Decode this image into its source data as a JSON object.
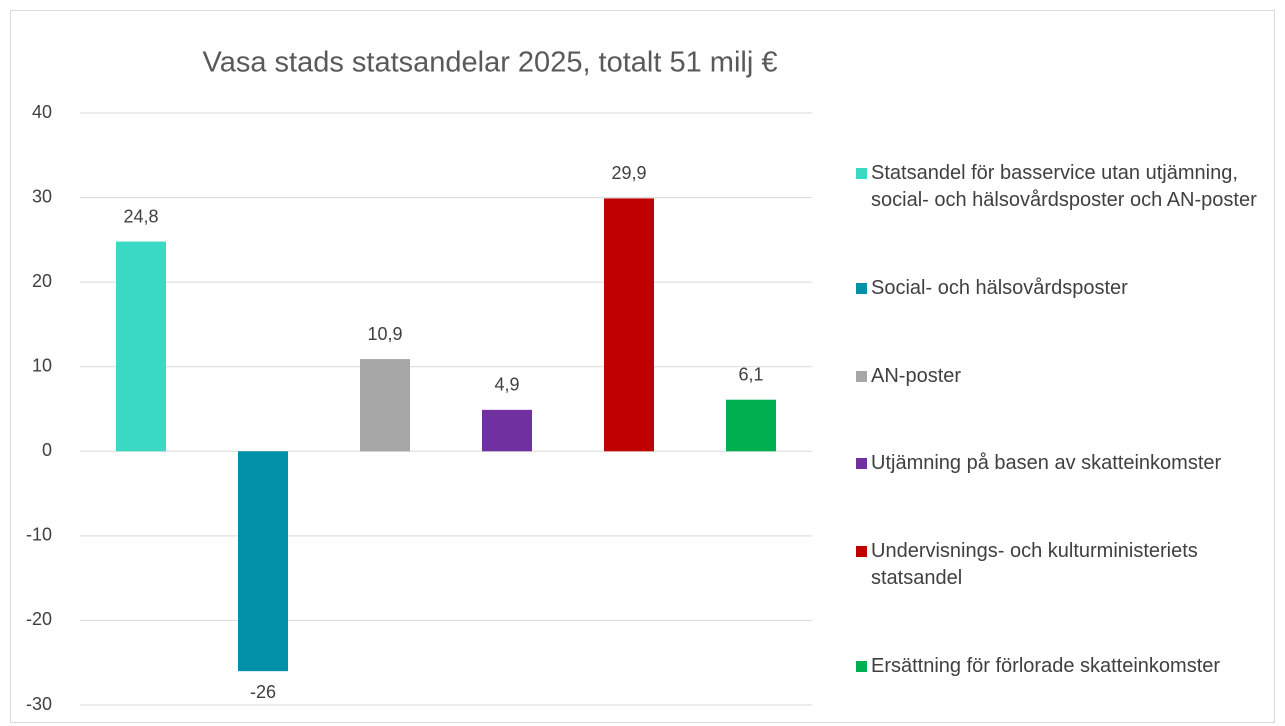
{
  "chart_data": {
    "type": "bar",
    "title": "Vasa stads statsandelar 2025, totalt 51 milj €",
    "ylim": [
      -30,
      40
    ],
    "yticks": [
      -30,
      -20,
      -10,
      0,
      10,
      20,
      30,
      40
    ],
    "grid": true,
    "series": [
      {
        "name": "Statsandel för basservice utan utjämning, social- och hälsovårdsposter och AN-poster",
        "color": "#3ad9c4",
        "values": [
          24.8
        ],
        "value_labels": [
          "24,8"
        ]
      },
      {
        "name": "Social- och hälsovårdsposter",
        "color": "#0090a8",
        "values": [
          -26
        ]
      },
      {
        "name": "AN-poster",
        "color": "#a6a6a6",
        "values": [
          10.9
        ],
        "value_labels": [
          "10,9"
        ]
      },
      {
        "name": "Utjämning på basen av skatteinkomster",
        "color": "#7030a0",
        "values": [
          4.9
        ],
        "value_labels": [
          "4,9"
        ]
      },
      {
        "name": "Undervisnings- och kulturministeriets statsandel",
        "color": "#c00000",
        "values": [
          29.9
        ],
        "value_labels": [
          "29,9"
        ]
      },
      {
        "name": "Ersättning för förlorade skatteinkomster",
        "color": "#00b050",
        "values": [
          6.1
        ],
        "value_labels": [
          "6,1"
        ]
      }
    ]
  }
}
